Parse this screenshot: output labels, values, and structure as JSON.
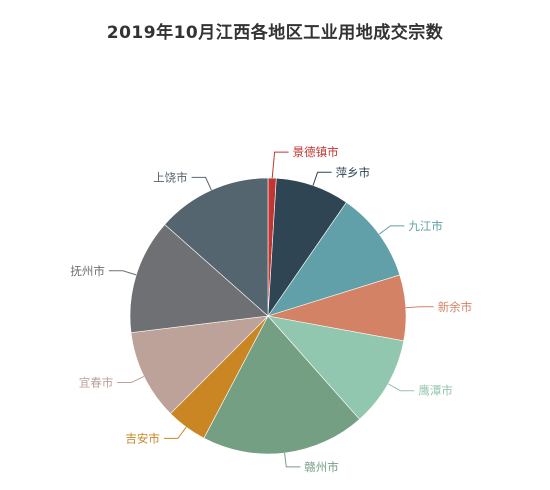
{
  "chart_data": {
    "type": "pie",
    "title": "2019年10月江西各地区工业用地成交宗数",
    "categories": [
      "景德镇市",
      "萍乡市",
      "九江市",
      "新余市",
      "鹰潭市",
      "赣州市",
      "吉安市",
      "宜春市",
      "抚州市",
      "上饶市"
    ],
    "values": [
      1,
      9,
      11,
      8,
      11,
      20,
      5,
      11,
      14,
      14
    ],
    "colors": [
      "#c23531",
      "#2f4554",
      "#61a0a8",
      "#d48265",
      "#91c7ae",
      "#749f83",
      "#ca8622",
      "#bda29a",
      "#6e7074",
      "#546570"
    ],
    "start_angle_deg": 90,
    "direction": "clockwise",
    "legend": "none",
    "label_position": "outside"
  }
}
